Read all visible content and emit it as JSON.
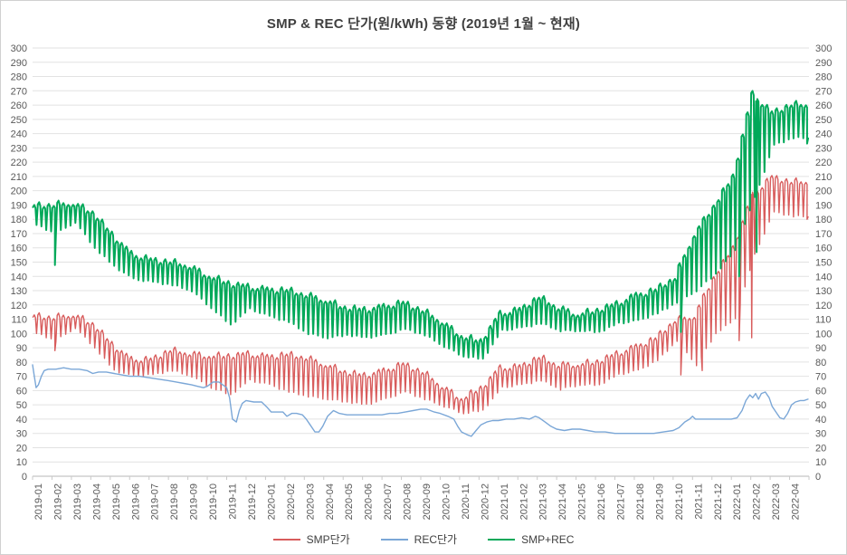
{
  "chart_data": {
    "type": "line",
    "title": "SMP & REC 단가(원/kWh) 동향 (2019년 1월 ~ 현재)",
    "xlabel": "",
    "ylabel": "",
    "ylim": [
      0,
      300
    ],
    "y_tick_step": 10,
    "grid": true,
    "legend_position": "bottom",
    "x_label_rotation_degrees": 90,
    "x_categories": [
      "2019-01",
      "2019-02",
      "2019-03",
      "2019-04",
      "2019-05",
      "2019-06",
      "2019-07",
      "2019-08",
      "2019-09",
      "2019-10",
      "2019-11",
      "2019-12",
      "2020-01",
      "2020-02",
      "2020-03",
      "2020-04",
      "2020-05",
      "2020-06",
      "2020-07",
      "2020-08",
      "2020-09",
      "2020-10",
      "2020-11",
      "2020-12",
      "2021-01",
      "2021-02",
      "2021-03",
      "2021-04",
      "2021-05",
      "2021-06",
      "2021-07",
      "2021-08",
      "2021-09",
      "2021-10",
      "2021-11",
      "2021-12",
      "2022-01",
      "2022-02",
      "2022-03",
      "2022-04"
    ],
    "colors": {
      "grid": "#e2e2e2",
      "axis_line": "#b7b7b7",
      "tick": "#c9c9c9",
      "axis_text": "#595959",
      "title_text": "#404040"
    },
    "series": [
      {
        "name": "SMP단가",
        "color": "#d85c5c",
        "style": "daily-oscillating",
        "unit": "원/kWh",
        "monthly_high": [
          113,
          112,
          114,
          108,
          93,
          82,
          82,
          89,
          87,
          85,
          85,
          86,
          84,
          86,
          84,
          79,
          74,
          71,
          74,
          79,
          74,
          64,
          55,
          62,
          76,
          77,
          84,
          79,
          79,
          81,
          86,
          91,
          97,
          110,
          113,
          140,
          160,
          197,
          210,
          207
        ],
        "monthly_low": [
          100,
          95,
          104,
          90,
          74,
          70,
          71,
          74,
          70,
          62,
          57,
          67,
          64,
          59,
          56,
          54,
          52,
          50,
          54,
          59,
          54,
          49,
          44,
          46,
          62,
          64,
          67,
          61,
          64,
          64,
          71,
          74,
          81,
          95,
          78,
          100,
          110,
          155,
          185,
          182
        ],
        "spikes": [
          [
            1.15,
            88
          ],
          [
            23.85,
            73
          ],
          [
            33.4,
            71
          ],
          [
            34.5,
            74
          ],
          [
            36.4,
            95
          ],
          [
            37.05,
            97
          ],
          [
            39.9,
            180
          ]
        ]
      },
      {
        "name": "REC단가",
        "color": "#7ba7d7",
        "style": "smooth",
        "unit": "원/kWh",
        "points": [
          [
            0.0,
            78
          ],
          [
            0.08,
            71
          ],
          [
            0.18,
            62
          ],
          [
            0.3,
            64
          ],
          [
            0.45,
            70
          ],
          [
            0.6,
            74
          ],
          [
            0.8,
            75
          ],
          [
            1.2,
            75
          ],
          [
            1.6,
            76
          ],
          [
            2.0,
            75
          ],
          [
            2.4,
            75
          ],
          [
            2.8,
            74
          ],
          [
            3.1,
            72
          ],
          [
            3.4,
            73
          ],
          [
            3.8,
            73
          ],
          [
            4.2,
            72
          ],
          [
            4.6,
            71
          ],
          [
            5.0,
            70
          ],
          [
            5.5,
            70
          ],
          [
            6.0,
            69
          ],
          [
            6.5,
            68
          ],
          [
            7.0,
            67
          ],
          [
            7.4,
            66
          ],
          [
            7.8,
            65
          ],
          [
            8.2,
            64
          ],
          [
            8.5,
            63
          ],
          [
            8.8,
            62
          ],
          [
            9.0,
            63
          ],
          [
            9.3,
            66
          ],
          [
            9.6,
            66
          ],
          [
            9.8,
            64
          ],
          [
            10.0,
            62
          ],
          [
            10.15,
            55
          ],
          [
            10.3,
            40
          ],
          [
            10.5,
            38
          ],
          [
            10.65,
            46
          ],
          [
            10.8,
            51
          ],
          [
            11.0,
            53
          ],
          [
            11.4,
            52
          ],
          [
            11.8,
            52
          ],
          [
            12.1,
            48
          ],
          [
            12.3,
            45
          ],
          [
            12.6,
            45
          ],
          [
            12.9,
            45
          ],
          [
            13.1,
            42
          ],
          [
            13.35,
            44
          ],
          [
            13.6,
            44
          ],
          [
            13.9,
            43
          ],
          [
            14.1,
            40
          ],
          [
            14.3,
            36
          ],
          [
            14.55,
            31
          ],
          [
            14.75,
            31
          ],
          [
            14.95,
            35
          ],
          [
            15.2,
            42
          ],
          [
            15.5,
            46
          ],
          [
            15.8,
            44
          ],
          [
            16.2,
            43
          ],
          [
            16.6,
            43
          ],
          [
            17.0,
            43
          ],
          [
            17.5,
            43
          ],
          [
            18.0,
            43
          ],
          [
            18.4,
            44
          ],
          [
            18.8,
            44
          ],
          [
            19.2,
            45
          ],
          [
            19.6,
            46
          ],
          [
            20.0,
            47
          ],
          [
            20.3,
            47
          ],
          [
            20.7,
            45
          ],
          [
            21.0,
            44
          ],
          [
            21.4,
            42
          ],
          [
            21.7,
            40
          ],
          [
            21.9,
            35
          ],
          [
            22.1,
            31
          ],
          [
            22.4,
            29
          ],
          [
            22.6,
            28
          ],
          [
            22.85,
            32
          ],
          [
            23.1,
            36
          ],
          [
            23.4,
            38
          ],
          [
            23.7,
            39
          ],
          [
            24.0,
            39
          ],
          [
            24.4,
            40
          ],
          [
            24.8,
            40
          ],
          [
            25.2,
            41
          ],
          [
            25.6,
            40
          ],
          [
            25.9,
            42
          ],
          [
            26.1,
            41
          ],
          [
            26.4,
            38
          ],
          [
            26.7,
            35
          ],
          [
            27.0,
            33
          ],
          [
            27.4,
            32
          ],
          [
            27.8,
            33
          ],
          [
            28.2,
            33
          ],
          [
            28.6,
            32
          ],
          [
            29.0,
            31
          ],
          [
            29.5,
            31
          ],
          [
            30.0,
            30
          ],
          [
            30.5,
            30
          ],
          [
            31.0,
            30
          ],
          [
            31.5,
            30
          ],
          [
            32.0,
            30
          ],
          [
            32.5,
            31
          ],
          [
            33.0,
            32
          ],
          [
            33.3,
            34
          ],
          [
            33.6,
            38
          ],
          [
            33.85,
            40
          ],
          [
            34.0,
            42
          ],
          [
            34.15,
            40
          ],
          [
            34.5,
            40
          ],
          [
            35.0,
            40
          ],
          [
            35.5,
            40
          ],
          [
            36.0,
            40
          ],
          [
            36.3,
            41
          ],
          [
            36.55,
            46
          ],
          [
            36.75,
            53
          ],
          [
            36.95,
            57
          ],
          [
            37.1,
            55
          ],
          [
            37.25,
            58
          ],
          [
            37.4,
            54
          ],
          [
            37.55,
            58
          ],
          [
            37.75,
            59
          ],
          [
            37.95,
            55
          ],
          [
            38.1,
            49
          ],
          [
            38.3,
            45
          ],
          [
            38.5,
            41
          ],
          [
            38.7,
            40
          ],
          [
            38.9,
            44
          ],
          [
            39.1,
            50
          ],
          [
            39.3,
            52
          ],
          [
            39.55,
            53
          ],
          [
            39.75,
            53
          ],
          [
            39.95,
            54
          ]
        ]
      },
      {
        "name": "SMP+REC",
        "color": "#00a859",
        "style": "daily-oscillating",
        "unit": "원/kWh",
        "monthly_high": [
          190,
          191,
          192,
          186,
          170,
          156,
          152,
          151,
          148,
          141,
          136,
          133,
          131,
          131,
          128,
          124,
          119,
          117,
          119,
          122,
          117,
          109,
          99,
          95,
          114,
          117,
          126,
          119,
          114,
          117,
          121,
          127,
          131,
          140,
          170,
          190,
          210,
          268,
          255,
          261
        ],
        "monthly_low": [
          176,
          170,
          178,
          160,
          147,
          138,
          136,
          134,
          130,
          118,
          106,
          117,
          112,
          108,
          100,
          97,
          99,
          97,
          99,
          103,
          99,
          91,
          84,
          82,
          102,
          104,
          107,
          102,
          102,
          101,
          107,
          109,
          114,
          122,
          130,
          142,
          158,
          195,
          232,
          237
        ],
        "spikes": [
          [
            1.15,
            148
          ],
          [
            23.85,
            110
          ],
          [
            33.4,
            101
          ],
          [
            36.4,
            140
          ],
          [
            37.3,
            157
          ],
          [
            39.9,
            233
          ]
        ]
      }
    ]
  }
}
